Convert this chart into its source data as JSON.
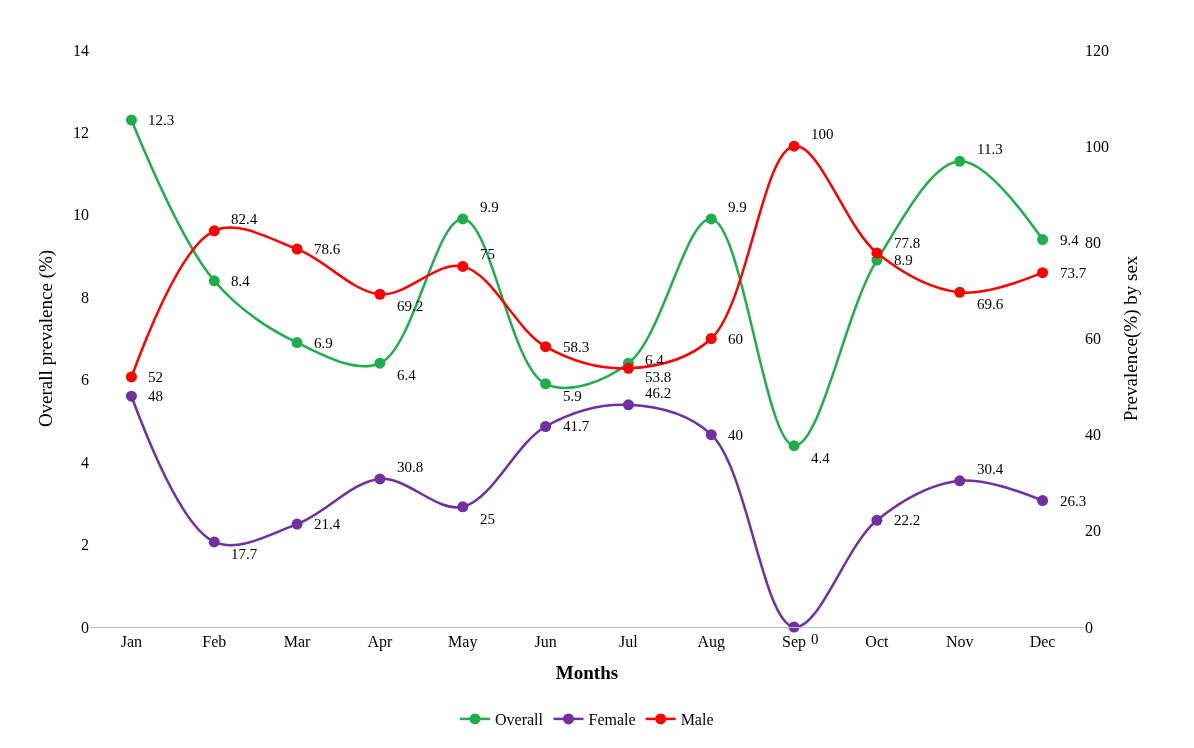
{
  "chart_data": {
    "type": "line",
    "xlabel": "Months",
    "ylabel": "Overall prevalence (%)",
    "y2label": "Prevalence(%) by sex",
    "categories": [
      "Jan",
      "Feb",
      "Mar",
      "Apr",
      "May",
      "Jun",
      "Jul",
      "Aug",
      "Sep",
      "Oct",
      "Nov",
      "Dec"
    ],
    "series": [
      {
        "name": "Overall",
        "color": "#1fae4b",
        "values": [
          12.3,
          8.4,
          6.9,
          6.4,
          9.9,
          5.9,
          6.4,
          9.9,
          4.4,
          8.9,
          11.3,
          9.4
        ]
      },
      {
        "name": "Female",
        "color": "#7030a0",
        "axis": "y2",
        "values": [
          48,
          17.7,
          21.4,
          30.8,
          25,
          41.7,
          46.2,
          40,
          0,
          22.2,
          30.4,
          26.3
        ]
      },
      {
        "name": "Male",
        "color": "#ff0000",
        "axis": "y2",
        "values": [
          52,
          82.4,
          78.6,
          69.2,
          75,
          58.3,
          53.8,
          60,
          100,
          77.8,
          69.6,
          73.7
        ]
      }
    ],
    "ylim": [
      0,
      14
    ],
    "yticks": [
      0,
      2,
      4,
      6,
      8,
      10,
      12,
      14
    ],
    "y2lim": [
      0,
      120
    ],
    "y2ticks": [
      0,
      20,
      40,
      60,
      80,
      100,
      120
    ],
    "data_labels": true,
    "legend": "bottom",
    "marker": "circle",
    "line_style": "solid"
  }
}
